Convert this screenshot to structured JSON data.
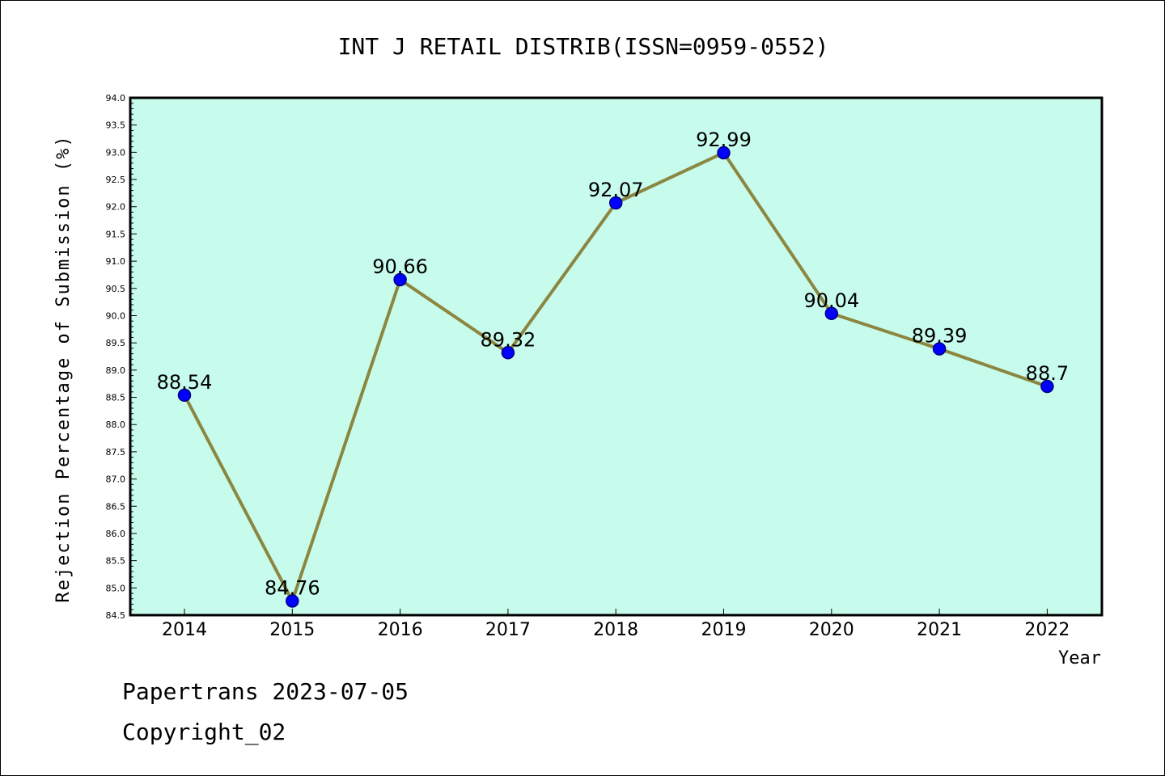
{
  "chart_data": {
    "type": "line",
    "title": "INT J RETAIL DISTRIB(ISSN=0959-0552)",
    "xlabel": "Year",
    "ylabel": "Rejection Percentage of Submission (%)",
    "categories": [
      "2014",
      "2015",
      "2016",
      "2017",
      "2018",
      "2019",
      "2020",
      "2021",
      "2022"
    ],
    "values": [
      88.54,
      84.76,
      90.66,
      89.32,
      92.07,
      92.99,
      90.04,
      89.39,
      88.7
    ],
    "data_labels": [
      "88.54",
      "84.76",
      "90.66",
      "89.32",
      "92.07",
      "92.99",
      "90.04",
      "89.39",
      "88.7"
    ],
    "ylim": [
      84.5,
      94.0
    ],
    "y_tick_labels": [
      "84.5",
      "85.0",
      "85.5",
      "86.0",
      "86.5",
      "87.0",
      "87.5",
      "88.0",
      "88.5",
      "89.0",
      "89.5",
      "90.0",
      "90.5",
      "91.0",
      "91.5",
      "92.0",
      "92.5",
      "93.0",
      "93.5",
      "94.0"
    ],
    "grid": false,
    "legend": "none",
    "colors": {
      "plot_background": "#c7fcec",
      "line": "#8b8640",
      "marker": "#0000ff",
      "marker_edge": "#000080"
    }
  },
  "footer": {
    "line1": "Papertrans 2023-07-05",
    "line2": "Copyright_02"
  }
}
